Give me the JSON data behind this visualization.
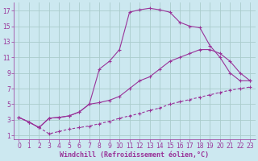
{
  "xlabel": "Windchill (Refroidissement éolien,°C)",
  "bg_color": "#cce8f0",
  "line_color": "#993399",
  "grid_color": "#aacccc",
  "xlim": [
    -0.5,
    23.5
  ],
  "ylim": [
    0.5,
    18
  ],
  "xticks": [
    0,
    1,
    2,
    3,
    4,
    5,
    6,
    7,
    8,
    9,
    10,
    11,
    12,
    13,
    14,
    15,
    16,
    17,
    18,
    19,
    20,
    21,
    22,
    23
  ],
  "yticks": [
    1,
    3,
    5,
    7,
    9,
    11,
    13,
    15,
    17
  ],
  "line_solid1_x": [
    0,
    1,
    2,
    3,
    4,
    5,
    6,
    7,
    8,
    9,
    10,
    11,
    12,
    13,
    14,
    15,
    16,
    17,
    18,
    19,
    20,
    21,
    22,
    23
  ],
  "line_solid1_y": [
    3.3,
    2.7,
    2.0,
    3.2,
    3.3,
    3.5,
    4.0,
    5.0,
    9.5,
    10.5,
    12.0,
    16.8,
    17.1,
    17.3,
    17.1,
    16.8,
    15.5,
    15.0,
    14.8,
    12.5,
    11.0,
    9.0,
    8.0,
    8.0
  ],
  "line_solid2_x": [
    0,
    1,
    2,
    3,
    4,
    5,
    6,
    7,
    8,
    9,
    10,
    11,
    12,
    13,
    14,
    15,
    16,
    17,
    18,
    19,
    20,
    21,
    22,
    23
  ],
  "line_solid2_y": [
    3.3,
    2.7,
    2.0,
    3.2,
    3.3,
    3.5,
    4.0,
    5.0,
    5.2,
    5.5,
    6.0,
    7.0,
    8.0,
    8.5,
    9.5,
    10.5,
    11.0,
    11.5,
    12.0,
    12.0,
    11.5,
    10.5,
    9.0,
    8.0
  ],
  "line_dashed_x": [
    0,
    1,
    2,
    3,
    4,
    5,
    6,
    7,
    8,
    9,
    10,
    11,
    12,
    13,
    14,
    15,
    16,
    17,
    18,
    19,
    20,
    21,
    22,
    23
  ],
  "line_dashed_y": [
    3.3,
    2.7,
    2.0,
    1.2,
    1.5,
    1.8,
    2.0,
    2.2,
    2.5,
    2.8,
    3.2,
    3.5,
    3.8,
    4.2,
    4.5,
    5.0,
    5.3,
    5.6,
    5.9,
    6.2,
    6.5,
    6.8,
    7.0,
    7.2
  ],
  "font_size": 6.0,
  "marker": "+"
}
